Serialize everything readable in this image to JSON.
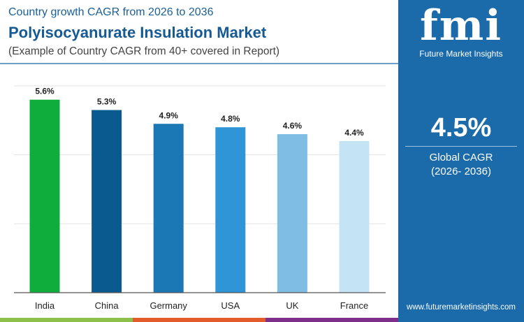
{
  "header": {
    "subtitle": "Country growth CAGR from 2026 to 2036",
    "title": "Polyisocyanurate Insulation Market",
    "note": "(Example of Country CAGR from 40+ covered in Report)"
  },
  "sidebar": {
    "logo_text": "fmi",
    "logo_caption": "Future Market Insights",
    "value": "4.5%",
    "label": "Global CAGR",
    "period": "(2026- 2036)",
    "url": "www.futuremarketinsights.com"
  },
  "colors": {
    "panel": "#1b6aa9",
    "strip": [
      "#8cc04b",
      "#e35a2b",
      "#7d2f8a"
    ]
  },
  "chart_data": {
    "type": "bar",
    "categories": [
      "India",
      "China",
      "Germany",
      "USA",
      "UK",
      "France"
    ],
    "values": [
      5.6,
      5.3,
      4.9,
      4.8,
      4.6,
      4.4
    ],
    "labels": [
      "5.6%",
      "5.3%",
      "4.9%",
      "4.8%",
      "4.6%",
      "4.4%"
    ],
    "colors": [
      "#0fae3c",
      "#0b5a8f",
      "#1c77b5",
      "#2f95d6",
      "#7fbde5",
      "#c4e3f4"
    ],
    "ylim": [
      0,
      6
    ],
    "grid": true,
    "unit": "%"
  }
}
